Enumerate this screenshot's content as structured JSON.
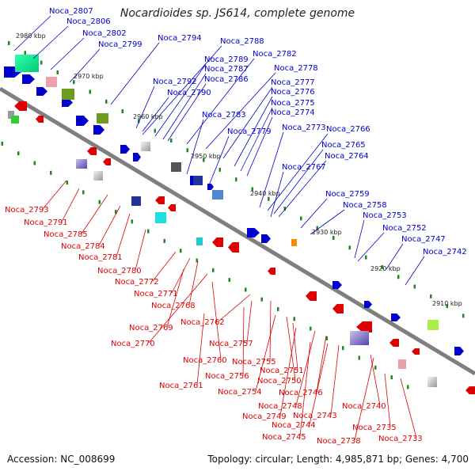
{
  "title": "Nocardioides sp. JS614, complete genome",
  "footer": {
    "accession": "Accession: NC_008699",
    "info": "Topology: circular; Length: 4,985,871 bp; Genes: 4,700"
  },
  "colors": {
    "forward": "#0000cc",
    "reverse": "#dd0000",
    "backbone": "#7f7f7f",
    "tick": "#228822"
  },
  "scale_labels": [
    "2980 kbp",
    "2970 kbp",
    "2960 kbp",
    "2950 kbp",
    "2940 kbp",
    "2930 kbp",
    "2920 kbp",
    "2910 kbp"
  ],
  "forward_labels": [
    "Noca_2807",
    "Noca_2806",
    "Noca_2802",
    "Noca_2799",
    "Noca_2794",
    "Noca_2788",
    "Noca_2789",
    "Noca_2782",
    "Noca_2787",
    "Noca_2778",
    "Noca_2792",
    "Noca_2786",
    "Noca_2777",
    "Noca_2790",
    "Noca_2776",
    "Noca_2775",
    "Noca_2783",
    "Noca_2774",
    "Noca_2779",
    "Noca_2773",
    "Noca_2766",
    "Noca_2765",
    "Noca_2764",
    "Noca_2767",
    "Noca_2759",
    "Noca_2758",
    "Noca_2753",
    "Noca_2752",
    "Noca_2747",
    "Noca_2742"
  ],
  "reverse_labels": [
    "Noca_2793",
    "Noca_2791",
    "Noca_2785",
    "Noca_2784",
    "Noca_2781",
    "Noca_2780",
    "Noca_2772",
    "Noca_2771",
    "Noca_2768",
    "Noca_2769",
    "Noca_2762",
    "Noca_2770",
    "Noca_2757",
    "Noca_2760",
    "Noca_2755",
    "Noca_2756",
    "Noca_2751",
    "Noca_2750",
    "Noca_2761",
    "Noca_2754",
    "Noca_2746",
    "Noca_2748",
    "Noca_2740",
    "Noca_2749",
    "Noca_2743",
    "Noca_2744",
    "Noca_2745",
    "Noca_2735",
    "Noca_2738",
    "Noca_2733"
  ]
}
